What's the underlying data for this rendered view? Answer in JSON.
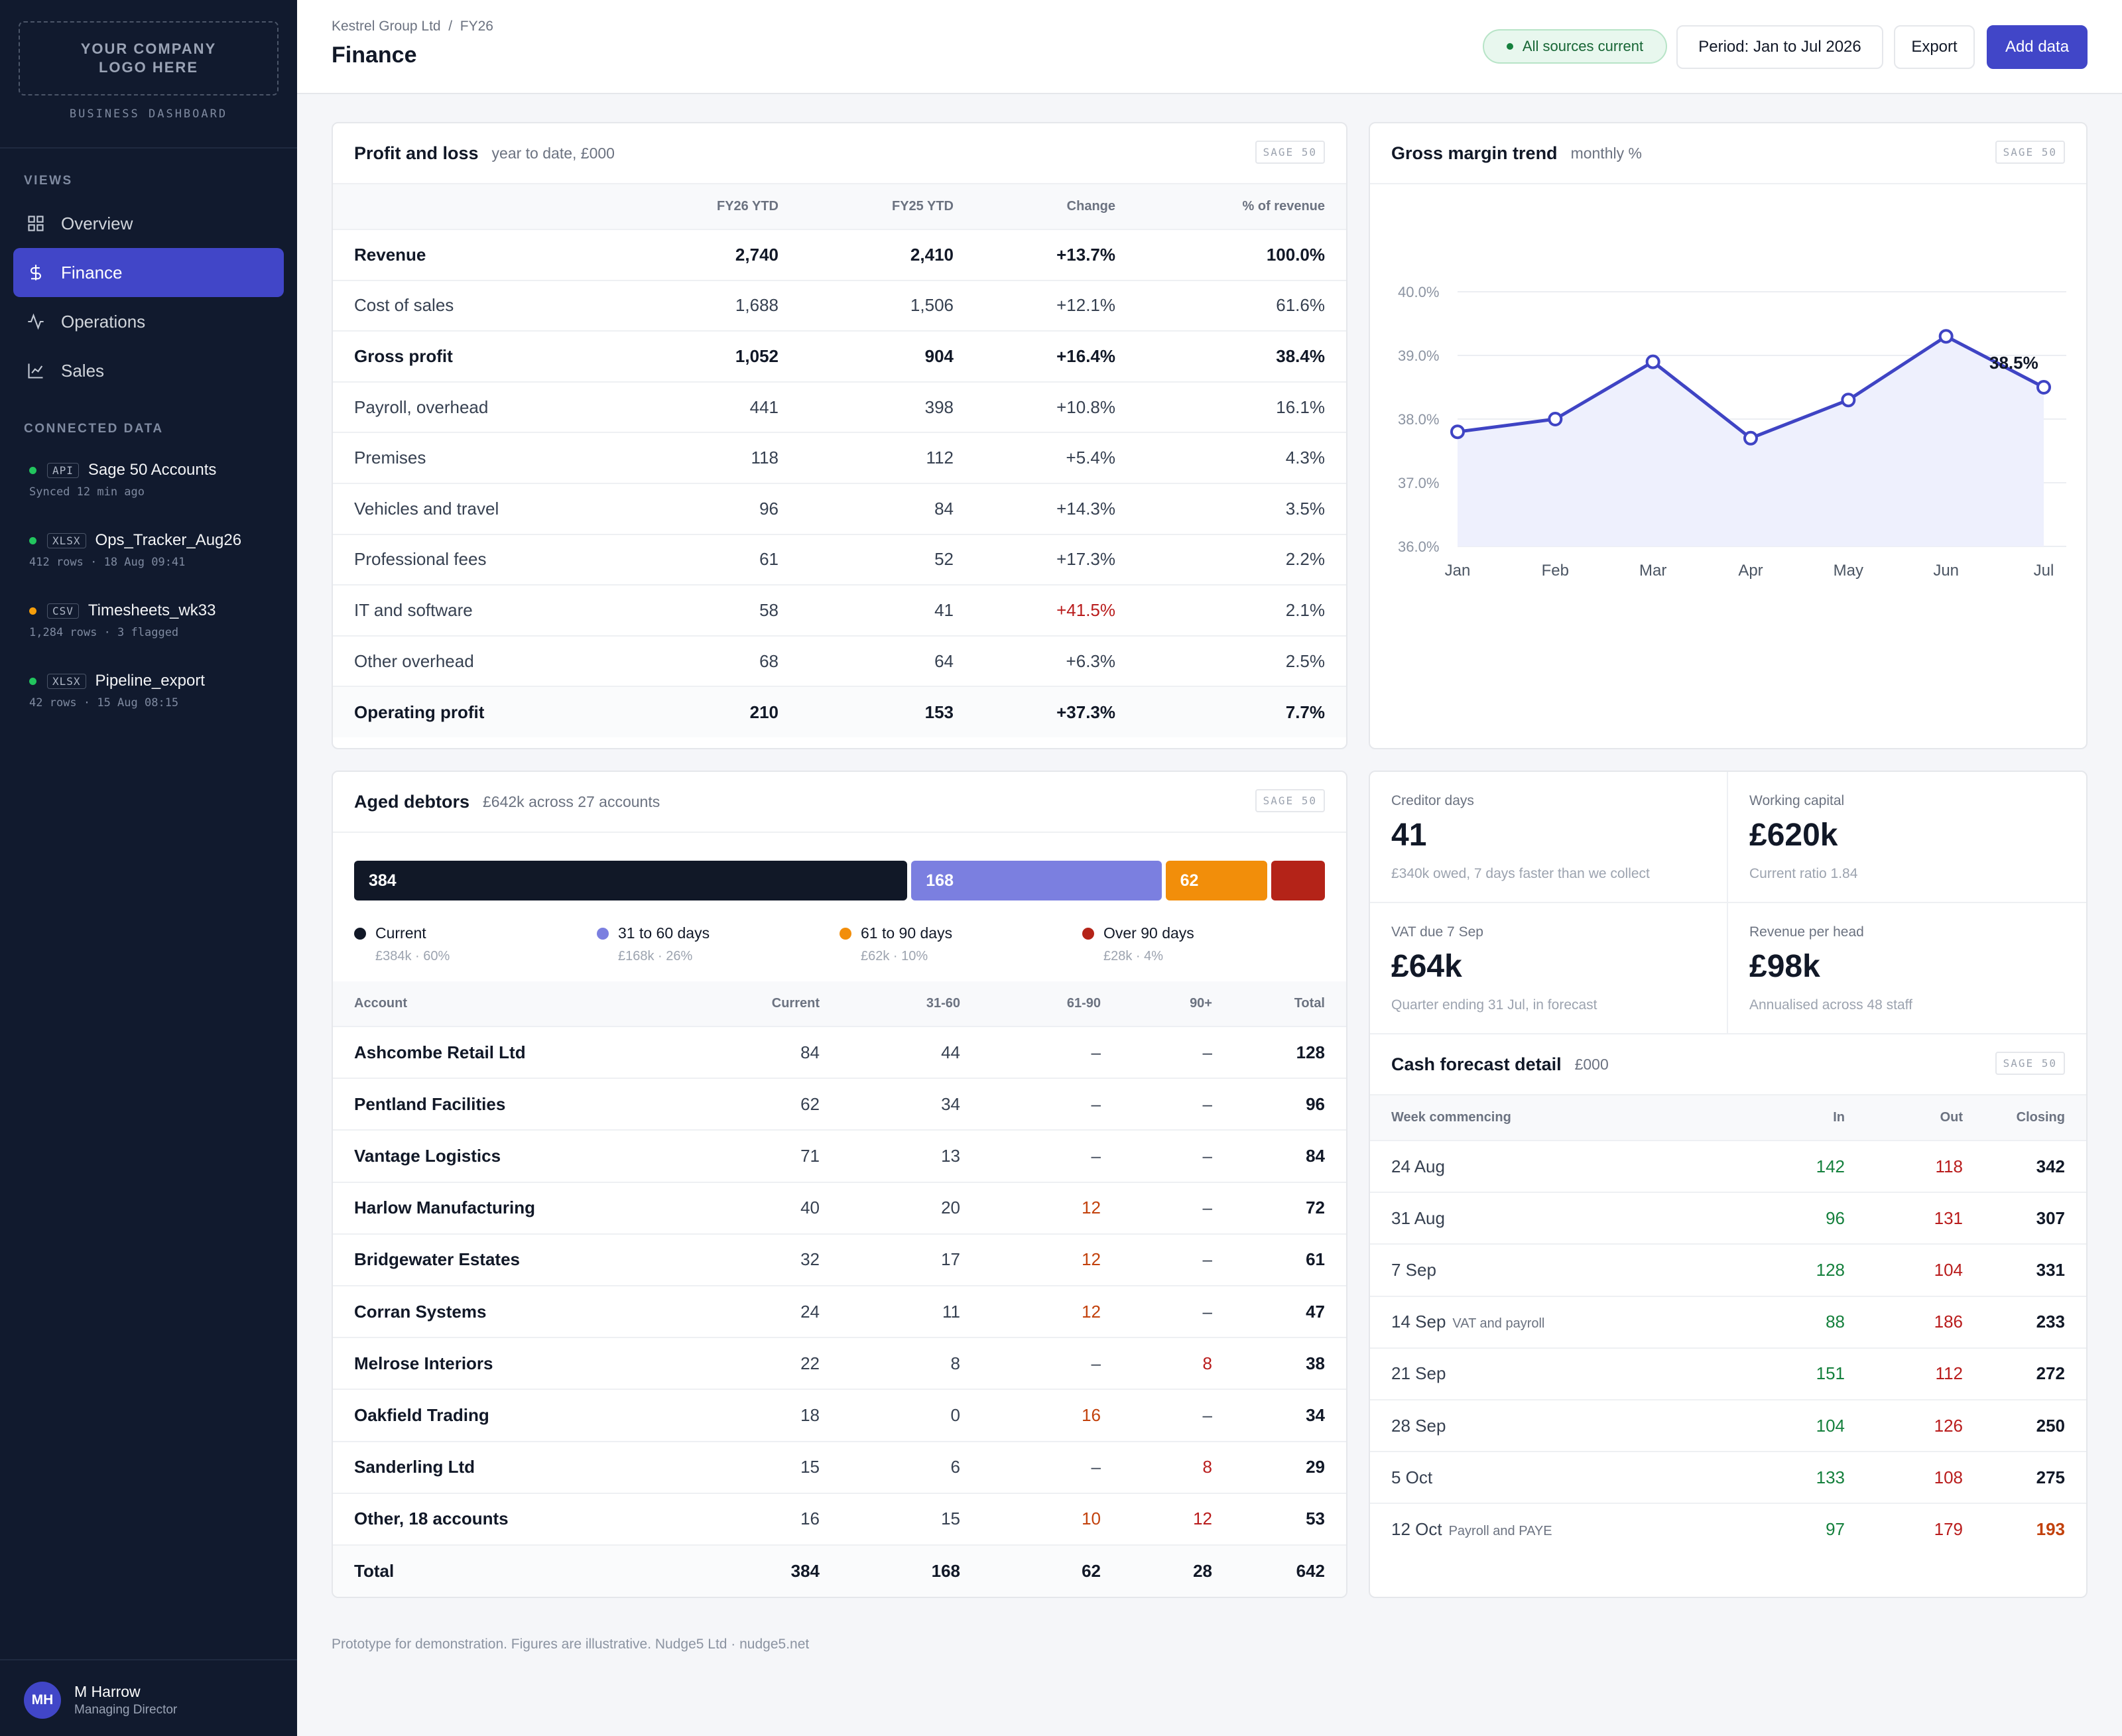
{
  "sidebar": {
    "logo_text": "YOUR COMPANY\nLOGO HERE",
    "brand_subtitle": "BUSINESS DASHBOARD",
    "views_heading": "VIEWS",
    "nav": [
      {
        "label": "Overview",
        "icon": "grid-icon",
        "active": false
      },
      {
        "label": "Finance",
        "icon": "dollar-icon",
        "active": true
      },
      {
        "label": "Operations",
        "icon": "pulse-icon",
        "active": false
      },
      {
        "label": "Sales",
        "icon": "chart-line-icon",
        "active": false
      }
    ],
    "connected_heading": "CONNECTED DATA",
    "sources": [
      {
        "tag": "API",
        "name": "Sage 50 Accounts",
        "meta": "Synced 12 min ago",
        "status_color": "#22c55e"
      },
      {
        "tag": "XLSX",
        "name": "Ops_Tracker_Aug26",
        "meta": "412 rows · 18 Aug 09:41",
        "status_color": "#22c55e"
      },
      {
        "tag": "CSV",
        "name": "Timesheets_wk33",
        "meta": "1,284 rows · 3 flagged",
        "status_color": "#f59e0b"
      },
      {
        "tag": "XLSX",
        "name": "Pipeline_export",
        "meta": "42 rows · 15 Aug 08:15",
        "status_color": "#22c55e"
      }
    ],
    "user": {
      "initials": "MH",
      "name": "M Harrow",
      "role": "Managing Director"
    }
  },
  "header": {
    "breadcrumb": "Kestrel Group Ltd  /  FY26",
    "title": "Finance",
    "status": "All sources current",
    "period": "Period: Jan to Jul 2026",
    "export_label": "Export",
    "add_label": "Add data"
  },
  "pnl": {
    "title": "Profit and loss",
    "subtitle": "year to date, £000",
    "badge": "SAGE 50",
    "columns": [
      "",
      "FY26 YTD",
      "FY25 YTD",
      "Change",
      "% of revenue"
    ],
    "rows": [
      {
        "label": "Revenue",
        "fy26": "2,740",
        "fy25": "2,410",
        "change": "+13.7%",
        "pct": "100.0%",
        "bold": true,
        "tone": "pos"
      },
      {
        "label": "Cost of sales",
        "fy26": "1,688",
        "fy25": "1,506",
        "change": "+12.1%",
        "pct": "61.6%",
        "bold": false,
        "tone": ""
      },
      {
        "label": "Gross profit",
        "fy26": "1,052",
        "fy25": "904",
        "change": "+16.4%",
        "pct": "38.4%",
        "bold": true,
        "tone": "pos"
      },
      {
        "label": "Payroll, overhead",
        "fy26": "441",
        "fy25": "398",
        "change": "+10.8%",
        "pct": "16.1%",
        "bold": false,
        "tone": ""
      },
      {
        "label": "Premises",
        "fy26": "118",
        "fy25": "112",
        "change": "+5.4%",
        "pct": "4.3%",
        "bold": false,
        "tone": ""
      },
      {
        "label": "Vehicles and travel",
        "fy26": "96",
        "fy25": "84",
        "change": "+14.3%",
        "pct": "3.5%",
        "bold": false,
        "tone": ""
      },
      {
        "label": "Professional fees",
        "fy26": "61",
        "fy25": "52",
        "change": "+17.3%",
        "pct": "2.2%",
        "bold": false,
        "tone": ""
      },
      {
        "label": "IT and software",
        "fy26": "58",
        "fy25": "41",
        "change": "+41.5%",
        "pct": "2.1%",
        "bold": false,
        "tone": "neg"
      },
      {
        "label": "Other overhead",
        "fy26": "68",
        "fy25": "64",
        "change": "+6.3%",
        "pct": "2.5%",
        "bold": false,
        "tone": ""
      },
      {
        "label": "Operating profit",
        "fy26": "210",
        "fy25": "153",
        "change": "+37.3%",
        "pct": "7.7%",
        "bold": true,
        "tone": "pos"
      }
    ]
  },
  "margin": {
    "title": "Gross margin trend",
    "subtitle": "monthly %",
    "badge": "SAGE 50",
    "end_label": "38.5%"
  },
  "chart_data": {
    "type": "area",
    "categories": [
      "Jan",
      "Feb",
      "Mar",
      "Apr",
      "May",
      "Jun",
      "Jul"
    ],
    "series": [
      {
        "values": [
          37.8,
          38.0,
          38.9,
          37.7,
          38.3,
          39.3,
          38.5
        ]
      }
    ],
    "ylim": [
      36.0,
      40.0
    ],
    "yticks": [
      "40.0%",
      "39.0%",
      "38.0%",
      "37.0%",
      "36.0%"
    ],
    "grid": true,
    "color": "#3f44c4",
    "fill": "#eef0fd"
  },
  "debtors": {
    "title": "Aged debtors",
    "subtitle": "£642k across 27 accounts",
    "badge": "SAGE 50",
    "buckets": [
      {
        "value": 384,
        "label": "Current",
        "sub": "£384k · 60%",
        "color": "#111827",
        "show_value": "384"
      },
      {
        "value": 168,
        "label": "31 to 60 days",
        "sub": "£168k · 26%",
        "color": "#7b7fe0",
        "show_value": "168"
      },
      {
        "value": 62,
        "label": "61 to 90 days",
        "sub": "£62k · 10%",
        "color": "#f28e0a",
        "show_value": "62"
      },
      {
        "value": 28,
        "label": "Over 90 days",
        "sub": "£28k · 4%",
        "color": "#b42318",
        "show_value": ""
      }
    ],
    "columns": [
      "Account",
      "Current",
      "31-60",
      "61-90",
      "90+",
      "Total"
    ],
    "rows": [
      {
        "account": "Ashcombe Retail Ltd",
        "current": "84",
        "d31": "44",
        "d61": "–",
        "d90": "–",
        "total": "128"
      },
      {
        "account": "Pentland Facilities",
        "current": "62",
        "d31": "34",
        "d61": "–",
        "d90": "–",
        "total": "96"
      },
      {
        "account": "Vantage Logistics",
        "current": "71",
        "d31": "13",
        "d61": "–",
        "d90": "–",
        "total": "84"
      },
      {
        "account": "Harlow Manufacturing",
        "current": "40",
        "d31": "20",
        "d61": "12",
        "d90": "–",
        "total": "72"
      },
      {
        "account": "Bridgewater Estates",
        "current": "32",
        "d31": "17",
        "d61": "12",
        "d90": "–",
        "total": "61"
      },
      {
        "account": "Corran Systems",
        "current": "24",
        "d31": "11",
        "d61": "12",
        "d90": "–",
        "total": "47"
      },
      {
        "account": "Melrose Interiors",
        "current": "22",
        "d31": "8",
        "d61": "–",
        "d90": "8",
        "total": "38"
      },
      {
        "account": "Oakfield Trading",
        "current": "18",
        "d31": "0",
        "d61": "16",
        "d90": "–",
        "total": "34"
      },
      {
        "account": "Sanderling Ltd",
        "current": "15",
        "d31": "6",
        "d61": "–",
        "d90": "8",
        "total": "29"
      },
      {
        "account": "Other, 18 accounts",
        "current": "16",
        "d31": "15",
        "d61": "10",
        "d90": "12",
        "total": "53"
      }
    ],
    "totals": {
      "account": "Total",
      "current": "384",
      "d31": "168",
      "d61": "62",
      "d90": "28",
      "total": "642"
    }
  },
  "kpis": [
    {
      "label": "Creditor days",
      "value": "41",
      "note": "£340k owed, 7 days faster than we collect"
    },
    {
      "label": "Working capital",
      "value": "£620k",
      "note": "Current ratio 1.84"
    },
    {
      "label": "VAT due 7 Sep",
      "value": "£64k",
      "note": "Quarter ending 31 Jul, in forecast"
    },
    {
      "label": "Revenue per head",
      "value": "£98k",
      "note": "Annualised across 48 staff"
    }
  ],
  "cash": {
    "title": "Cash forecast detail",
    "subtitle": "£000",
    "badge": "SAGE 50",
    "columns": [
      "Week commencing",
      "In",
      "Out",
      "Closing"
    ],
    "rows": [
      {
        "week": "24 Aug",
        "note": "",
        "in": "142",
        "out": "118",
        "closing": "342",
        "warn": false
      },
      {
        "week": "31 Aug",
        "note": "",
        "in": "96",
        "out": "131",
        "closing": "307",
        "warn": false
      },
      {
        "week": "7 Sep",
        "note": "",
        "in": "128",
        "out": "104",
        "closing": "331",
        "warn": false
      },
      {
        "week": "14 Sep",
        "note": "VAT and payroll",
        "in": "88",
        "out": "186",
        "closing": "233",
        "warn": false
      },
      {
        "week": "21 Sep",
        "note": "",
        "in": "151",
        "out": "112",
        "closing": "272",
        "warn": false
      },
      {
        "week": "28 Sep",
        "note": "",
        "in": "104",
        "out": "126",
        "closing": "250",
        "warn": false
      },
      {
        "week": "5 Oct",
        "note": "",
        "in": "133",
        "out": "108",
        "closing": "275",
        "warn": false
      },
      {
        "week": "12 Oct",
        "note": "Payroll and PAYE",
        "in": "97",
        "out": "179",
        "closing": "193",
        "warn": true
      }
    ]
  },
  "footer": "Prototype for demonstration. Figures are illustrative. Nudge5 Ltd · nudge5.net"
}
